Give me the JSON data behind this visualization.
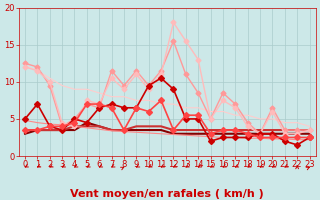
{
  "title": "",
  "xlabel": "Vent moyen/en rafales ( km/h )",
  "ylabel": "",
  "background_color": "#cce8e8",
  "grid_color": "#aacccc",
  "xlim": [
    -0.5,
    23.5
  ],
  "ylim": [
    0,
    20
  ],
  "yticks": [
    0,
    5,
    10,
    15,
    20
  ],
  "xticks": [
    0,
    1,
    2,
    3,
    4,
    5,
    6,
    7,
    8,
    9,
    10,
    11,
    12,
    13,
    14,
    15,
    16,
    17,
    18,
    19,
    20,
    21,
    22,
    23
  ],
  "series": [
    {
      "x": [
        0,
        1,
        2,
        3,
        4,
        5,
        6,
        7,
        8,
        9,
        10,
        11,
        12,
        13,
        14,
        15,
        16,
        17,
        18,
        19,
        20,
        21,
        22,
        23
      ],
      "y": [
        12.5,
        12.0,
        9.5,
        4.0,
        5.0,
        7.0,
        6.5,
        11.5,
        9.5,
        11.5,
        9.5,
        11.5,
        15.5,
        11.0,
        8.5,
        5.0,
        8.5,
        7.0,
        4.5,
        3.0,
        6.5,
        3.5,
        3.5,
        3.5
      ],
      "color": "#ff9999",
      "lw": 1.0,
      "ms": 2.5,
      "marker": "D"
    },
    {
      "x": [
        0,
        1,
        2,
        3,
        4,
        5,
        6,
        7,
        8,
        9,
        10,
        11,
        12,
        13,
        14,
        15,
        16,
        17,
        18,
        19,
        20,
        21,
        22,
        23
      ],
      "y": [
        12.0,
        11.5,
        10.0,
        4.5,
        4.0,
        7.5,
        7.0,
        10.5,
        9.0,
        11.0,
        9.0,
        11.0,
        18.0,
        15.5,
        13.0,
        5.0,
        7.5,
        6.5,
        4.0,
        3.0,
        6.0,
        3.0,
        3.0,
        3.5
      ],
      "color": "#ffbbbb",
      "lw": 1.0,
      "ms": 2.5,
      "marker": "D"
    },
    {
      "x": [
        0,
        1,
        2,
        3,
        4,
        5,
        6,
        7,
        8,
        9,
        10,
        11,
        12,
        13,
        14,
        15,
        16,
        17,
        18,
        19,
        20,
        21,
        22,
        23
      ],
      "y": [
        5.0,
        7.0,
        4.0,
        3.5,
        5.0,
        4.5,
        6.5,
        7.0,
        6.5,
        6.5,
        9.5,
        10.5,
        9.0,
        5.0,
        5.0,
        2.0,
        2.5,
        2.5,
        2.5,
        3.0,
        3.0,
        2.0,
        1.5,
        2.5
      ],
      "color": "#cc0000",
      "lw": 1.2,
      "ms": 3.0,
      "marker": "D"
    },
    {
      "x": [
        0,
        1,
        2,
        3,
        4,
        5,
        6,
        7,
        8,
        9,
        10,
        11,
        12,
        13,
        14,
        15,
        16,
        17,
        18,
        19,
        20,
        21,
        22,
        23
      ],
      "y": [
        3.5,
        3.5,
        4.0,
        4.0,
        4.5,
        7.0,
        7.0,
        6.5,
        3.5,
        6.5,
        6.0,
        7.5,
        3.5,
        5.5,
        5.5,
        3.0,
        3.5,
        3.5,
        3.0,
        2.5,
        2.5,
        2.5,
        2.5,
        2.5
      ],
      "color": "#ff4444",
      "lw": 1.2,
      "ms": 3.0,
      "marker": "D"
    },
    {
      "x": [
        0,
        1,
        2,
        3,
        4,
        5,
        6,
        7,
        8,
        9,
        10,
        11,
        12,
        13,
        14,
        15,
        16,
        17,
        18,
        19,
        20,
        21,
        22,
        23
      ],
      "y": [
        3.0,
        3.5,
        3.5,
        3.5,
        3.5,
        4.5,
        4.0,
        3.5,
        3.5,
        3.5,
        3.5,
        3.5,
        3.0,
        3.0,
        3.0,
        3.0,
        3.0,
        3.0,
        3.0,
        3.0,
        3.0,
        3.0,
        3.0,
        3.0
      ],
      "color": "#880000",
      "lw": 1.5,
      "ms": 0,
      "marker": "None"
    },
    {
      "x": [
        0,
        1,
        2,
        3,
        4,
        5,
        6,
        7,
        8,
        9,
        10,
        11,
        12,
        13,
        14,
        15,
        16,
        17,
        18,
        19,
        20,
        21,
        22,
        23
      ],
      "y": [
        3.5,
        3.5,
        3.5,
        3.5,
        4.0,
        4.0,
        4.0,
        3.5,
        3.5,
        4.0,
        4.0,
        4.0,
        3.5,
        3.5,
        3.5,
        3.5,
        3.5,
        3.5,
        3.5,
        3.5,
        3.5,
        3.5,
        3.5,
        3.5
      ],
      "color": "#cc3333",
      "lw": 1.5,
      "ms": 0,
      "marker": "None"
    },
    {
      "x": [
        0,
        1,
        2,
        3,
        4,
        5,
        6,
        7,
        8,
        9,
        10,
        11,
        12,
        13,
        14,
        15,
        16,
        17,
        18,
        19,
        20,
        21,
        22,
        23
      ],
      "y": [
        12.2,
        11.5,
        10.5,
        9.5,
        9.0,
        9.0,
        8.5,
        8.0,
        8.0,
        7.5,
        7.5,
        7.0,
        7.0,
        6.5,
        6.5,
        6.0,
        6.0,
        5.5,
        5.5,
        5.0,
        5.0,
        4.5,
        4.5,
        4.0
      ],
      "color": "#ffcccc",
      "lw": 0.8,
      "ms": 0,
      "marker": "None"
    },
    {
      "x": [
        0,
        1,
        2,
        3,
        4,
        5,
        6,
        7,
        8,
        9,
        10,
        11,
        12,
        13,
        14,
        15,
        16,
        17,
        18,
        19,
        20,
        21,
        22,
        23
      ],
      "y": [
        4.8,
        4.5,
        4.3,
        4.2,
        4.0,
        3.8,
        3.6,
        3.4,
        3.3,
        3.2,
        3.1,
        3.0,
        2.9,
        2.8,
        2.7,
        2.6,
        2.5,
        2.5,
        2.4,
        2.4,
        2.3,
        2.3,
        2.2,
        2.2
      ],
      "color": "#ff8888",
      "lw": 0.8,
      "ms": 0,
      "marker": "None"
    }
  ],
  "arrow_angles": [
    -135,
    -135,
    -135,
    -135,
    -135,
    -135,
    -135,
    -135,
    45,
    -135,
    -135,
    -135,
    -135,
    -135,
    -135,
    -135,
    -135,
    -135,
    -135,
    -135,
    -135,
    -135,
    90,
    45
  ],
  "arrow_color": "#cc0000",
  "xlabel_color": "#cc0000",
  "xlabel_fontsize": 8,
  "tick_color": "#cc0000",
  "tick_fontsize": 6
}
